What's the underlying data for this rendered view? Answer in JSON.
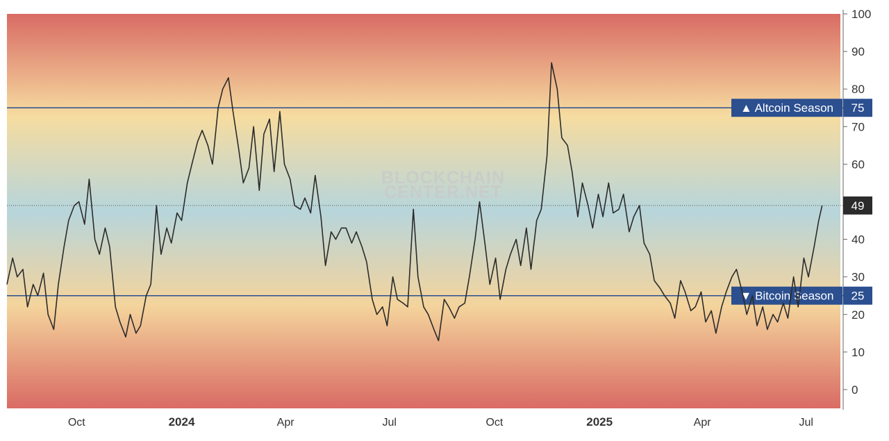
{
  "chart_data": {
    "type": "line",
    "watermark": [
      "BLOCKCHAIN",
      "CENTER.NET"
    ],
    "ylim": [
      -5,
      100
    ],
    "y_ticks": [
      0,
      10,
      20,
      30,
      40,
      50,
      60,
      70,
      80,
      90,
      100
    ],
    "xlim": [
      "2023-08-01",
      "2025-07-31"
    ],
    "x_ticks": [
      {
        "label": "Oct",
        "date": "2023-10-01",
        "bold": false
      },
      {
        "label": "2024",
        "date": "2024-01-01",
        "bold": true
      },
      {
        "label": "Apr",
        "date": "2024-04-01",
        "bold": false
      },
      {
        "label": "Jul",
        "date": "2024-07-01",
        "bold": false
      },
      {
        "label": "Oct",
        "date": "2024-10-01",
        "bold": false
      },
      {
        "label": "2025",
        "date": "2025-01-01",
        "bold": true
      },
      {
        "label": "Apr",
        "date": "2025-04-01",
        "bold": false
      },
      {
        "label": "Jul",
        "date": "2025-07-01",
        "bold": false
      }
    ],
    "background_gradient": {
      "top": "#d96b64",
      "upper": "#f6dca0",
      "middle": "#b7d5db",
      "lower": "#f4d49c",
      "bottom": "#d96b64"
    },
    "reference_lines": [
      {
        "label": "▲ Altcoin Season",
        "value": 75,
        "color": "#2b4f8f"
      },
      {
        "label": "▼ Bitcoin Season",
        "value": 25,
        "color": "#2b4f8f"
      }
    ],
    "current_value": 49,
    "current_value_color": "#2b2b2b",
    "line_color": "#2b2b2b",
    "series": [
      {
        "x": [
          "2023-08-01",
          "2023-08-06",
          "2023-08-10",
          "2023-08-15",
          "2023-08-19",
          "2023-08-24",
          "2023-08-28",
          "2023-09-02",
          "2023-09-06",
          "2023-09-11",
          "2023-09-15",
          "2023-09-20",
          "2023-09-24",
          "2023-09-29",
          "2023-10-03",
          "2023-10-08",
          "2023-10-12",
          "2023-10-17",
          "2023-10-21",
          "2023-10-26",
          "2023-10-30",
          "2023-11-04",
          "2023-11-08",
          "2023-11-13",
          "2023-11-17",
          "2023-11-22",
          "2023-11-26",
          "2023-12-01",
          "2023-12-05",
          "2023-12-10",
          "2023-12-14",
          "2023-12-19",
          "2023-12-23",
          "2023-12-28",
          "2024-01-01",
          "2024-01-06",
          "2024-01-10",
          "2024-01-15",
          "2024-01-19",
          "2024-01-24",
          "2024-01-28",
          "2024-02-02",
          "2024-02-06",
          "2024-02-11",
          "2024-02-15",
          "2024-02-20",
          "2024-02-24",
          "2024-02-29",
          "2024-03-04",
          "2024-03-09",
          "2024-03-13",
          "2024-03-18",
          "2024-03-22",
          "2024-03-27",
          "2024-03-31",
          "2024-04-05",
          "2024-04-09",
          "2024-04-14",
          "2024-04-18",
          "2024-04-23",
          "2024-04-27",
          "2024-05-02",
          "2024-05-06",
          "2024-05-11",
          "2024-05-15",
          "2024-05-20",
          "2024-05-24",
          "2024-05-29",
          "2024-06-02",
          "2024-06-07",
          "2024-06-11",
          "2024-06-16",
          "2024-06-20",
          "2024-06-25",
          "2024-06-29",
          "2024-07-04",
          "2024-07-08",
          "2024-07-13",
          "2024-07-17",
          "2024-07-22",
          "2024-07-26",
          "2024-07-31",
          "2024-08-04",
          "2024-08-09",
          "2024-08-13",
          "2024-08-18",
          "2024-08-22",
          "2024-08-27",
          "2024-08-31",
          "2024-09-05",
          "2024-09-09",
          "2024-09-14",
          "2024-09-18",
          "2024-09-23",
          "2024-09-27",
          "2024-10-02",
          "2024-10-06",
          "2024-10-11",
          "2024-10-15",
          "2024-10-20",
          "2024-10-24",
          "2024-10-29",
          "2024-11-02",
          "2024-11-07",
          "2024-11-11",
          "2024-11-16",
          "2024-11-20",
          "2024-11-25",
          "2024-11-29",
          "2024-12-04",
          "2024-12-08",
          "2024-12-13",
          "2024-12-17",
          "2024-12-22",
          "2024-12-26",
          "2024-12-31",
          "2025-01-04",
          "2025-01-09",
          "2025-01-13",
          "2025-01-18",
          "2025-01-22",
          "2025-01-27",
          "2025-01-31",
          "2025-02-05",
          "2025-02-09",
          "2025-02-14",
          "2025-02-18",
          "2025-02-23",
          "2025-02-27",
          "2025-03-04",
          "2025-03-08",
          "2025-03-13",
          "2025-03-17",
          "2025-03-22",
          "2025-03-26",
          "2025-03-31",
          "2025-04-04",
          "2025-04-09",
          "2025-04-13",
          "2025-04-18",
          "2025-04-22",
          "2025-04-27",
          "2025-05-01",
          "2025-05-06",
          "2025-05-10",
          "2025-05-15",
          "2025-05-19",
          "2025-05-24",
          "2025-05-28",
          "2025-06-02",
          "2025-06-06",
          "2025-06-11",
          "2025-06-15",
          "2025-06-20",
          "2025-06-24",
          "2025-06-29",
          "2025-07-03",
          "2025-07-08",
          "2025-07-12",
          "2025-07-15"
        ],
        "values": [
          28,
          35,
          30,
          32,
          22,
          28,
          25,
          31,
          20,
          16,
          28,
          38,
          45,
          49,
          50,
          44,
          56,
          40,
          36,
          43,
          38,
          22,
          18,
          14,
          20,
          15,
          17,
          25,
          28,
          49,
          36,
          43,
          39,
          47,
          45,
          55,
          60,
          66,
          69,
          65,
          60,
          75,
          80,
          83,
          74,
          64,
          55,
          59,
          70,
          53,
          68,
          72,
          58,
          74,
          60,
          56,
          49,
          48,
          51,
          47,
          57,
          46,
          33,
          42,
          40,
          43,
          43,
          39,
          42,
          38,
          34,
          24,
          20,
          22,
          17,
          30,
          24,
          23,
          22,
          48,
          30,
          22,
          20,
          16,
          13,
          24,
          22,
          19,
          22,
          23,
          30,
          40,
          50,
          38,
          28,
          35,
          24,
          32,
          36,
          40,
          33,
          43,
          32,
          45,
          48,
          62,
          87,
          80,
          67,
          65,
          58,
          46,
          55,
          49,
          43,
          52,
          46,
          55,
          47,
          48,
          52,
          42,
          46,
          49,
          39,
          36,
          29,
          27,
          25,
          23,
          19,
          29,
          26,
          21,
          22,
          26,
          18,
          21,
          15,
          22,
          26,
          30,
          32,
          26,
          20,
          25,
          17,
          22,
          16,
          20,
          18,
          23,
          19,
          30,
          22,
          35,
          30,
          38,
          45,
          49
        ]
      }
    ]
  }
}
